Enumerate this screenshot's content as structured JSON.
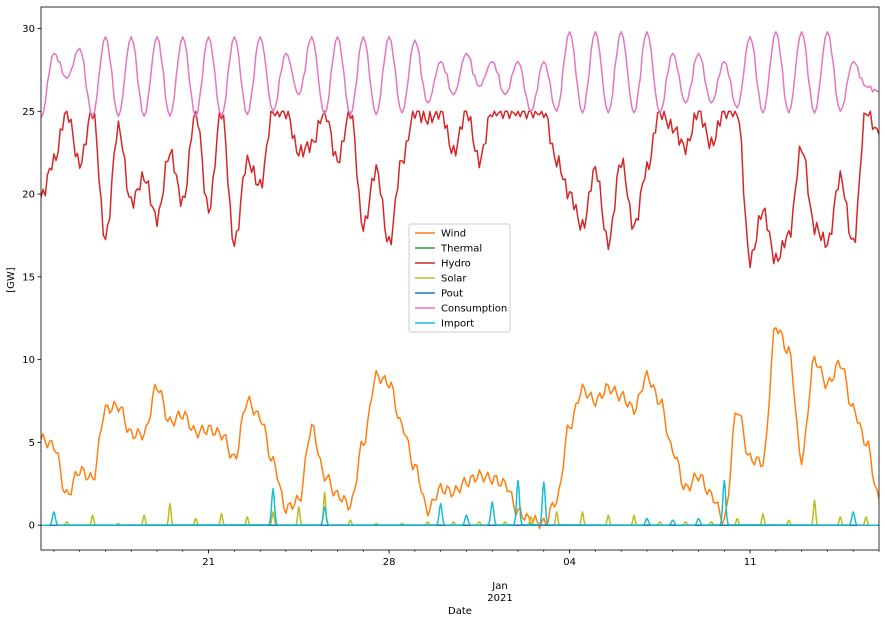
{
  "chart_data": {
    "type": "line",
    "xlabel": "Date",
    "ylabel": "[GW]",
    "xlim": [
      "2020-12-14T12:00",
      "2021-01-16"
    ],
    "ylim": [
      -1.5,
      31.3
    ],
    "grid": false,
    "legend_position": "center",
    "x_major_ticks": [
      {
        "date": "2020-12-21",
        "label": "21"
      },
      {
        "date": "2020-12-28",
        "label": "28"
      },
      {
        "date": "2021-01-04",
        "label": "04"
      },
      {
        "date": "2021-01-11",
        "label": "11"
      }
    ],
    "x_secondary_label": [
      "Jan",
      "2021"
    ],
    "y_ticks": [
      0,
      5,
      10,
      15,
      20,
      25,
      30
    ],
    "series": [
      {
        "name": "Wind",
        "color": "#ff7f0e",
        "x": [
          "2020-12-14T12:00",
          "2020-12-15",
          "2020-12-15T12:00",
          "2020-12-16",
          "2020-12-16T12:00",
          "2020-12-17",
          "2020-12-17T12:00",
          "2020-12-18",
          "2020-12-18T12:00",
          "2020-12-19",
          "2020-12-19T12:00",
          "2020-12-20",
          "2020-12-20T12:00",
          "2020-12-21",
          "2020-12-21T12:00",
          "2020-12-22",
          "2020-12-22T12:00",
          "2020-12-23",
          "2020-12-23T12:00",
          "2020-12-24",
          "2020-12-24T12:00",
          "2020-12-25",
          "2020-12-25T12:00",
          "2020-12-26",
          "2020-12-26T12:00",
          "2020-12-27",
          "2020-12-27T12:00",
          "2020-12-28",
          "2020-12-28T12:00",
          "2020-12-29",
          "2020-12-29T12:00",
          "2020-12-30",
          "2020-12-30T12:00",
          "2020-12-31",
          "2020-12-31T12:00",
          "2021-01-01",
          "2021-01-01T12:00",
          "2021-01-02",
          "2021-01-02T12:00",
          "2021-01-03",
          "2021-01-03T12:00",
          "2021-01-04",
          "2021-01-04T12:00",
          "2021-01-05",
          "2021-01-05T12:00",
          "2021-01-06",
          "2021-01-06T12:00",
          "2021-01-07",
          "2021-01-07T12:00",
          "2021-01-08",
          "2021-01-08T12:00",
          "2021-01-09",
          "2021-01-09T12:00",
          "2021-01-10",
          "2021-01-10T12:00",
          "2021-01-11",
          "2021-01-11T12:00",
          "2021-01-12",
          "2021-01-12T12:00",
          "2021-01-13",
          "2021-01-13T12:00",
          "2021-01-14",
          "2021-01-14T12:00",
          "2021-01-15",
          "2021-01-15T12:00",
          "2021-01-16"
        ],
        "values": [
          5.2,
          4.8,
          1.8,
          3.3,
          2.8,
          7.0,
          7.2,
          5.5,
          5.5,
          8.4,
          6.2,
          6.7,
          5.6,
          5.8,
          5.5,
          4.0,
          7.5,
          6.5,
          3.8,
          1.0,
          1.5,
          5.9,
          3.0,
          1.8,
          1.2,
          5.0,
          9.0,
          8.6,
          6.0,
          3.5,
          0.9,
          2.2,
          2.0,
          2.6,
          3.0,
          2.8,
          2.5,
          0.8,
          0.3,
          0.1,
          1.5,
          6.0,
          8.2,
          7.5,
          8.3,
          7.8,
          7.0,
          9.0,
          7.5,
          4.5,
          2.2,
          3.0,
          1.8,
          0.3,
          7.0,
          4.0,
          3.8,
          12.0,
          10.5,
          4.0,
          10.0,
          8.5,
          9.8,
          7.0,
          5.0,
          1.6
        ]
      },
      {
        "name": "Thermal",
        "color": "#2ca02c",
        "x": [
          "2020-12-14T12:00",
          "2021-01-16"
        ],
        "values": [
          0,
          0
        ]
      },
      {
        "name": "Hydro",
        "color": "#d62728",
        "x": [
          "2020-12-14T12:00",
          "2020-12-15",
          "2020-12-15T12:00",
          "2020-12-16",
          "2020-12-16T12:00",
          "2020-12-17",
          "2020-12-17T12:00",
          "2020-12-18",
          "2020-12-18T12:00",
          "2020-12-19",
          "2020-12-19T12:00",
          "2020-12-20",
          "2020-12-20T12:00",
          "2020-12-21",
          "2020-12-21T12:00",
          "2020-12-22",
          "2020-12-22T12:00",
          "2020-12-23",
          "2020-12-23T12:00",
          "2020-12-24",
          "2020-12-24T12:00",
          "2020-12-25",
          "2020-12-25T12:00",
          "2020-12-26",
          "2020-12-26T12:00",
          "2020-12-27",
          "2020-12-27T12:00",
          "2020-12-28",
          "2020-12-28T12:00",
          "2020-12-29",
          "2020-12-29T12:00",
          "2020-12-30",
          "2020-12-30T12:00",
          "2020-12-31",
          "2020-12-31T12:00",
          "2021-01-01",
          "2021-01-01T12:00",
          "2021-01-02",
          "2021-01-02T12:00",
          "2021-01-03",
          "2021-01-03T12:00",
          "2021-01-04",
          "2021-01-04T12:00",
          "2021-01-05",
          "2021-01-05T12:00",
          "2021-01-06",
          "2021-01-06T12:00",
          "2021-01-07",
          "2021-01-07T12:00",
          "2021-01-08",
          "2021-01-08T12:00",
          "2021-01-09",
          "2021-01-09T12:00",
          "2021-01-10",
          "2021-01-10T12:00",
          "2021-01-11",
          "2021-01-11T12:00",
          "2021-01-12",
          "2021-01-12T12:00",
          "2021-01-13",
          "2021-01-13T12:00",
          "2021-01-14",
          "2021-01-14T12:00",
          "2021-01-15",
          "2021-01-15T12:00",
          "2021-01-16"
        ],
        "values": [
          19.8,
          22.0,
          25.0,
          21.8,
          25.0,
          17.3,
          24.0,
          19.5,
          21.0,
          18.5,
          22.5,
          19.5,
          25.0,
          19.0,
          25.0,
          17.0,
          22.0,
          20.5,
          25.0,
          25.0,
          22.5,
          23.0,
          25.0,
          22.0,
          25.0,
          18.0,
          21.5,
          17.0,
          22.0,
          25.0,
          24.5,
          25.0,
          22.5,
          25.0,
          22.0,
          25.0,
          25.0,
          25.0,
          25.0,
          25.0,
          22.0,
          20.0,
          18.0,
          21.5,
          17.0,
          22.0,
          18.0,
          21.5,
          25.0,
          24.0,
          22.8,
          25.0,
          23.0,
          25.0,
          25.0,
          16.0,
          19.0,
          16.0,
          17.5,
          22.8,
          18.0,
          17.0,
          21.0,
          17.0,
          25.0,
          23.6
        ]
      },
      {
        "name": "Solar",
        "color": "#bcbd22",
        "x": [
          "2020-12-14T12:00",
          "2020-12-15T12:00",
          "2020-12-16T12:00",
          "2020-12-17T12:00",
          "2020-12-18T12:00",
          "2020-12-19T12:00",
          "2020-12-20T12:00",
          "2020-12-21T12:00",
          "2020-12-22T12:00",
          "2020-12-23T12:00",
          "2020-12-24T12:00",
          "2020-12-25T12:00",
          "2020-12-26T12:00",
          "2020-12-27T12:00",
          "2020-12-28T12:00",
          "2020-12-29T12:00",
          "2020-12-30T12:00",
          "2020-12-31T12:00",
          "2021-01-01T12:00",
          "2021-01-02T12:00",
          "2021-01-03T12:00",
          "2021-01-04T12:00",
          "2021-01-05T12:00",
          "2021-01-06T12:00",
          "2021-01-07T12:00",
          "2021-01-08T12:00",
          "2021-01-09T12:00",
          "2021-01-10T12:00",
          "2021-01-11T12:00",
          "2021-01-12T12:00",
          "2021-01-13T12:00",
          "2021-01-14T12:00",
          "2021-01-15T12:00"
        ],
        "values": [
          0.0,
          0.2,
          0.6,
          0.1,
          0.6,
          1.3,
          0.4,
          0.7,
          0.5,
          0.8,
          1.1,
          2.0,
          0.3,
          0.1,
          0.1,
          0.2,
          0.2,
          0.2,
          0.2,
          0.5,
          0.8,
          0.8,
          0.6,
          0.6,
          0.2,
          0.2,
          0.2,
          0.4,
          0.7,
          0.3,
          1.5,
          0.5,
          0.5
        ]
      },
      {
        "name": "Pout",
        "color": "#1f77b4",
        "x": [
          "2020-12-14T12:00",
          "2021-01-16"
        ],
        "values": [
          0,
          0
        ]
      },
      {
        "name": "Consumption",
        "color": "#e377c2",
        "x": [
          "2020-12-14T12:00",
          "2020-12-15",
          "2020-12-15T12:00",
          "2020-12-16",
          "2020-12-16T12:00",
          "2020-12-17",
          "2020-12-17T12:00",
          "2020-12-18",
          "2020-12-18T12:00",
          "2020-12-19",
          "2020-12-19T12:00",
          "2020-12-20",
          "2020-12-20T12:00",
          "2020-12-21",
          "2020-12-21T12:00",
          "2020-12-22",
          "2020-12-22T12:00",
          "2020-12-23",
          "2020-12-23T12:00",
          "2020-12-24",
          "2020-12-24T12:00",
          "2020-12-25",
          "2020-12-25T12:00",
          "2020-12-26",
          "2020-12-26T12:00",
          "2020-12-27",
          "2020-12-27T12:00",
          "2020-12-28",
          "2020-12-28T12:00",
          "2020-12-29",
          "2020-12-29T12:00",
          "2020-12-30",
          "2020-12-30T12:00",
          "2020-12-31",
          "2020-12-31T12:00",
          "2021-01-01",
          "2021-01-01T12:00",
          "2021-01-02",
          "2021-01-02T12:00",
          "2021-01-03",
          "2021-01-03T12:00",
          "2021-01-04",
          "2021-01-04T12:00",
          "2021-01-05",
          "2021-01-05T12:00",
          "2021-01-06",
          "2021-01-06T12:00",
          "2021-01-07",
          "2021-01-07T12:00",
          "2021-01-08",
          "2021-01-08T12:00",
          "2021-01-09",
          "2021-01-09T12:00",
          "2021-01-10",
          "2021-01-10T12:00",
          "2021-01-11",
          "2021-01-11T12:00",
          "2021-01-12",
          "2021-01-12T12:00",
          "2021-01-13",
          "2021-01-13T12:00",
          "2021-01-14",
          "2021-01-14T12:00",
          "2021-01-15",
          "2021-01-15T12:00",
          "2021-01-16"
        ],
        "values": [
          24.6,
          28.5,
          27.0,
          28.8,
          24.7,
          29.5,
          24.7,
          29.5,
          24.7,
          29.5,
          24.7,
          29.5,
          24.7,
          29.5,
          24.7,
          29.5,
          24.8,
          29.5,
          25.0,
          28.5,
          26.0,
          29.5,
          24.8,
          29.5,
          24.8,
          29.5,
          24.8,
          29.5,
          24.9,
          29.3,
          25.5,
          28.0,
          26.0,
          28.5,
          26.5,
          28.0,
          26.0,
          28.0,
          25.0,
          28.0,
          25.0,
          29.8,
          24.9,
          29.8,
          24.9,
          29.8,
          24.9,
          29.8,
          24.9,
          28.5,
          25.5,
          28.5,
          25.5,
          28.0,
          25.2,
          29.5,
          24.9,
          29.8,
          24.9,
          29.8,
          24.9,
          29.8,
          25.0,
          28.0,
          26.5,
          26.2
        ]
      },
      {
        "name": "Import",
        "color": "#17becf",
        "x": [
          "2020-12-15",
          "2020-12-23T12:00",
          "2020-12-25T12:00",
          "2020-12-30",
          "2020-12-31",
          "2021-01-01",
          "2021-01-02",
          "2021-01-03",
          "2021-01-07",
          "2021-01-08",
          "2021-01-09",
          "2021-01-10",
          "2021-01-15"
        ],
        "values": [
          0.8,
          2.2,
          1.1,
          1.3,
          0.6,
          1.4,
          2.7,
          2.6,
          0.4,
          0.3,
          0.4,
          2.7,
          0.8
        ]
      }
    ]
  }
}
